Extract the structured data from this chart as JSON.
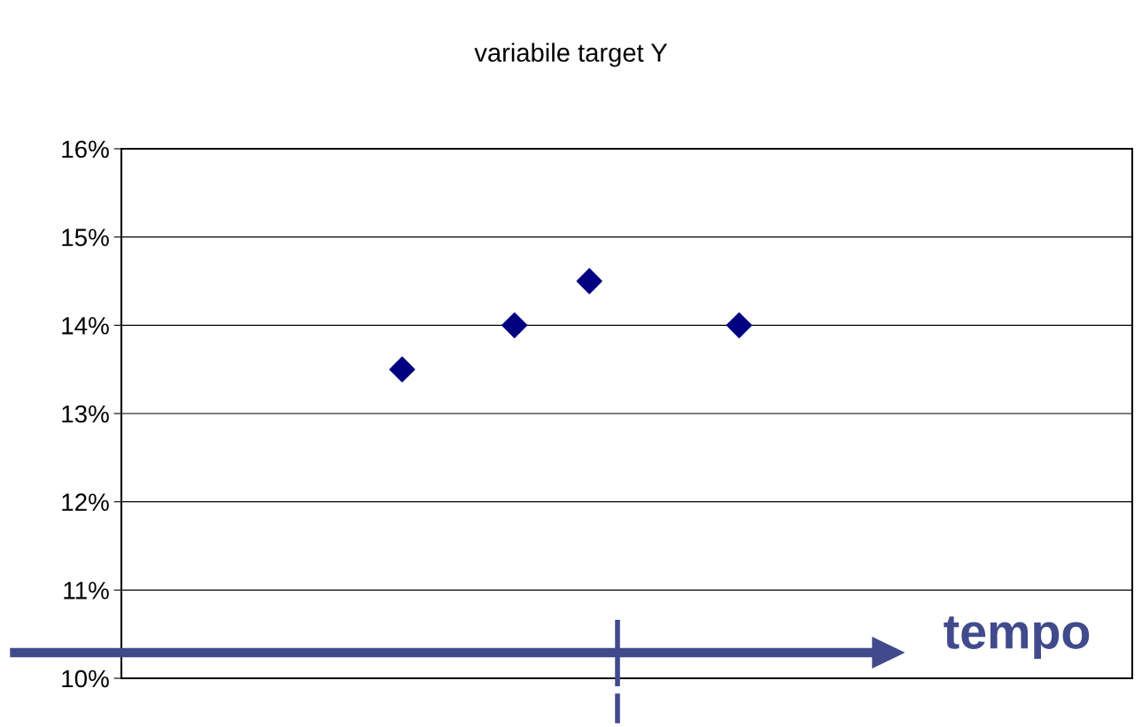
{
  "chart_data": {
    "type": "scatter",
    "title": "variabile target Y",
    "categories": [
      null,
      null,
      null,
      null,
      null,
      null,
      null,
      null,
      null,
      null,
      null,
      null,
      null,
      null,
      null,
      null,
      null,
      null,
      null,
      null,
      null,
      null,
      null,
      null,
      null,
      null,
      null
    ],
    "series": [
      {
        "color": "#000080",
        "values": [
          null,
          null,
          null,
          null,
          null,
          null,
          null,
          13.5,
          null,
          null,
          14,
          null,
          14.5,
          null,
          null,
          null,
          14,
          null,
          null,
          null,
          null,
          null,
          null,
          null,
          null,
          null,
          null
        ]
      }
    ],
    "ylim": [
      10,
      16
    ],
    "yticks": [
      {
        "value": 10,
        "label": "10%"
      },
      {
        "value": 11,
        "label": "11%"
      },
      {
        "value": 12,
        "label": "12%"
      },
      {
        "value": 13,
        "label": "13%"
      },
      {
        "value": 14,
        "label": "14%"
      },
      {
        "value": 15,
        "label": "15%"
      },
      {
        "value": 16,
        "label": "16%"
      }
    ],
    "grid": "y",
    "marker": "diamond",
    "tick_labels": "y",
    "legend": false,
    "annotations": [
      "tempo"
    ]
  }
}
